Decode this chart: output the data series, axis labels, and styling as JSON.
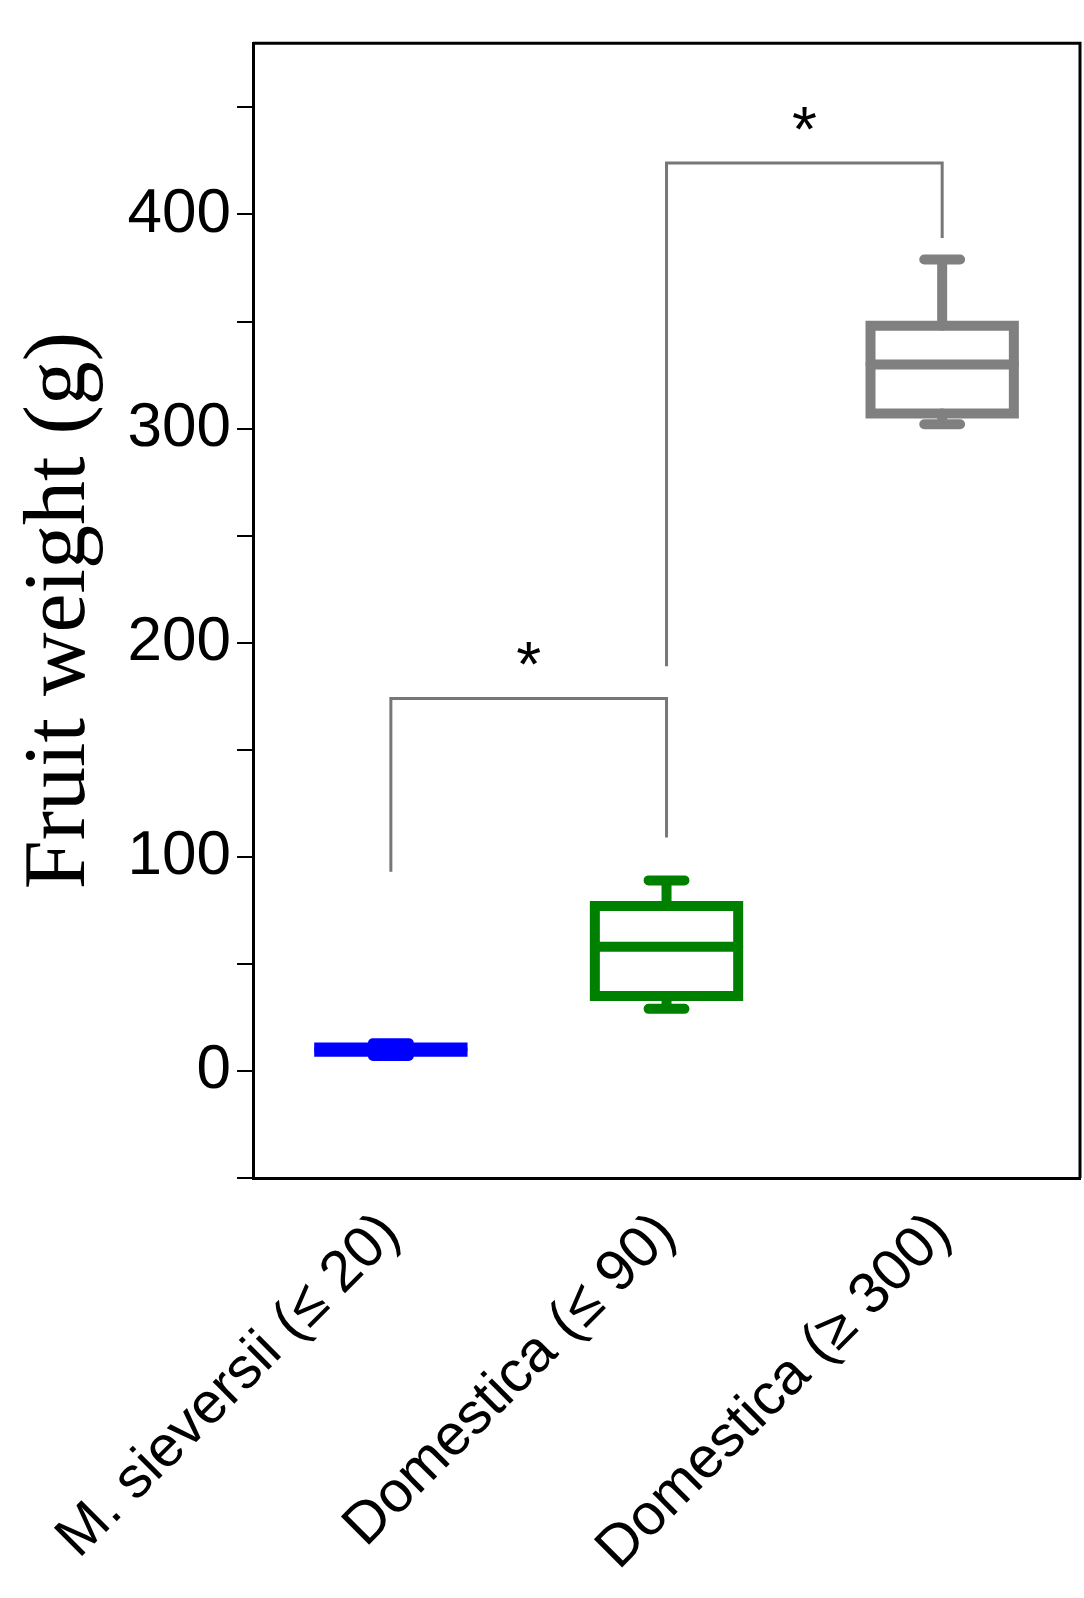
{
  "chart_data": {
    "type": "box",
    "ylabel": "Fruit weight (g)",
    "categories": [
      "M. sieversii (≤ 20)",
      "Domestica (≤ 90)",
      "Domestica (≥ 300)"
    ],
    "colors": [
      "#0000ff",
      "#008000",
      "#808080"
    ],
    "boxes": [
      {
        "low": 7,
        "q1": 9,
        "median": 10,
        "q3": 11,
        "high": 13
      },
      {
        "low": 29,
        "q1": 35,
        "median": 58,
        "q3": 77,
        "high": 89
      },
      {
        "low": 302,
        "q1": 307,
        "median": 330,
        "q3": 348,
        "high": 379
      }
    ],
    "ylim": [
      -50,
      480
    ],
    "yticks": [
      {
        "value": -50,
        "label": null
      },
      0,
      {
        "value": 50,
        "label": null
      },
      100,
      {
        "value": 150,
        "label": null
      },
      200,
      {
        "value": 250,
        "label": null
      },
      300,
      {
        "value": 350,
        "label": null
      },
      400,
      {
        "value": 450,
        "label": null
      }
    ],
    "grid": false,
    "legend": false,
    "annotations": [
      "*",
      "*"
    ]
  }
}
